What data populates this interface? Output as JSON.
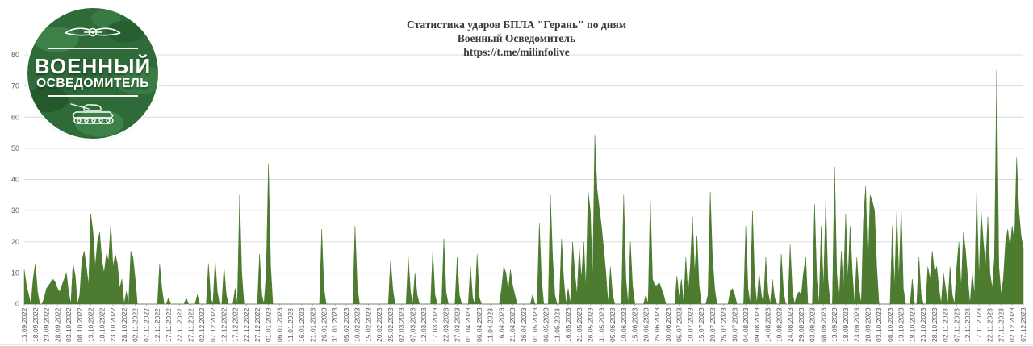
{
  "logo": {
    "top_text": "ВОЕННЫЙ",
    "bottom_text": "ОСВЕДОМИТЕЛЬ"
  },
  "chart_data": {
    "type": "area",
    "title": "Статистика ударов БПЛА \"Герань\" по дням",
    "subtitle": "Военный Осведомитель",
    "url_line": "https://t.me/milinfolive",
    "xlabel": "",
    "ylabel": "",
    "ylim": [
      0,
      80
    ],
    "yticks": [
      0,
      10,
      20,
      30,
      40,
      50,
      60,
      70,
      80
    ],
    "grid": "horizontal",
    "legend": "none",
    "start_date": "13.09.2022",
    "end_date": "07.12.2023",
    "x_tick_interval_days": 5,
    "x_tick_labels": [
      "13.09.2022",
      "18.09.2022",
      "23.09.2022",
      "28.09.2022",
      "03.10.2022",
      "08.10.2022",
      "13.10.2022",
      "18.10.2022",
      "23.10.2022",
      "28.10.2022",
      "02.11.2022",
      "07.11.2022",
      "12.11.2022",
      "17.11.2022",
      "22.11.2022",
      "27.11.2022",
      "02.12.2022",
      "07.12.2022",
      "12.12.2022",
      "17.12.2022",
      "22.12.2022",
      "27.12.2022",
      "01.01.2023",
      "06.01.2023",
      "11.01.2023",
      "16.01.2023",
      "21.01.2023",
      "26.01.2023",
      "31.01.2023",
      "05.02.2023",
      "10.02.2023",
      "15.02.2023",
      "20.02.2023",
      "25.02.2023",
      "02.03.2023",
      "07.03.2023",
      "12.03.2023",
      "17.03.2023",
      "22.03.2023",
      "27.03.2023",
      "01.04.2023",
      "06.04.2023",
      "11.04.2023",
      "16.04.2023",
      "21.04.2023",
      "26.04.2023",
      "01.05.2023",
      "06.05.2023",
      "11.05.2023",
      "16.05.2023",
      "21.05.2023",
      "26.05.2023",
      "31.05.2023",
      "05.06.2023",
      "10.06.2023",
      "15.06.2023",
      "20.06.2023",
      "25.06.2023",
      "30.06.2023",
      "05.07.2023",
      "10.07.2023",
      "15.07.2023",
      "20.07.2023",
      "25.07.2023",
      "30.07.2023",
      "04.08.2023",
      "09.08.2023",
      "14.08.2023",
      "19.08.2023",
      "24.08.2023",
      "29.08.2023",
      "03.09.2023",
      "08.09.2023",
      "13.09.2023",
      "18.09.2023",
      "23.09.2023",
      "28.09.2023",
      "03.10.2023",
      "08.10.2023",
      "13.10.2023",
      "18.10.2023",
      "23.10.2023",
      "28.10.2023",
      "02.11.2023",
      "07.11.2023",
      "12.11.2023",
      "17.11.2023",
      "22.11.2023",
      "27.11.2023",
      "02.12.2023",
      "07.12.2023"
    ],
    "values_unit": "strikes per day (daily values starting 13.09.2022)",
    "values": [
      11,
      6,
      3,
      0,
      8,
      13,
      4,
      0,
      0,
      2,
      5,
      6,
      7,
      8,
      7,
      5,
      4,
      6,
      8,
      10,
      4,
      0,
      13,
      9,
      0,
      3,
      14,
      17,
      12,
      6,
      29,
      23,
      12,
      20,
      23,
      14,
      10,
      16,
      14,
      26,
      12,
      16,
      13,
      5,
      8,
      0,
      4,
      0,
      17,
      15,
      8,
      0,
      0,
      0,
      0,
      0,
      0,
      0,
      0,
      0,
      0,
      13,
      5,
      0,
      0,
      2,
      0,
      0,
      0,
      0,
      0,
      0,
      0,
      2,
      0,
      0,
      0,
      0,
      3,
      0,
      0,
      0,
      0,
      13,
      2,
      0,
      14,
      4,
      0,
      0,
      12,
      3,
      0,
      0,
      0,
      5,
      0,
      35,
      10,
      0,
      0,
      0,
      0,
      0,
      0,
      0,
      16,
      3,
      0,
      10,
      45,
      12,
      0,
      0,
      0,
      0,
      0,
      0,
      0,
      0,
      0,
      0,
      0,
      0,
      0,
      0,
      0,
      0,
      0,
      0,
      0,
      0,
      0,
      0,
      24,
      5,
      0,
      0,
      0,
      0,
      0,
      0,
      0,
      0,
      0,
      0,
      0,
      0,
      0,
      25,
      6,
      0,
      0,
      0,
      0,
      0,
      0,
      0,
      0,
      0,
      0,
      0,
      0,
      0,
      0,
      14,
      5,
      0,
      0,
      0,
      0,
      0,
      0,
      15,
      4,
      0,
      10,
      3,
      0,
      0,
      0,
      0,
      0,
      0,
      17,
      3,
      0,
      0,
      0,
      21,
      4,
      0,
      0,
      0,
      0,
      15,
      3,
      0,
      0,
      0,
      0,
      12,
      2,
      0,
      16,
      2,
      0,
      0,
      0,
      0,
      0,
      0,
      0,
      0,
      0,
      5,
      12,
      10,
      4,
      11,
      6,
      3,
      0,
      0,
      0,
      0,
      0,
      0,
      0,
      3,
      0,
      0,
      26,
      8,
      0,
      0,
      0,
      35,
      15,
      3,
      0,
      0,
      21,
      8,
      0,
      5,
      0,
      20,
      10,
      3,
      18,
      8,
      20,
      5,
      36,
      30,
      8,
      54,
      37,
      31,
      25,
      18,
      10,
      0,
      12,
      3,
      0,
      0,
      0,
      0,
      35,
      8,
      0,
      20,
      6,
      0,
      0,
      0,
      0,
      0,
      3,
      0,
      34,
      8,
      6,
      6,
      7,
      5,
      3,
      0,
      0,
      0,
      0,
      0,
      9,
      2,
      8,
      0,
      15,
      3,
      12,
      28,
      10,
      22,
      6,
      0,
      0,
      0,
      3,
      36,
      15,
      5,
      0,
      0,
      0,
      0,
      0,
      0,
      4,
      5,
      3,
      0,
      0,
      0,
      0,
      25,
      5,
      0,
      30,
      8,
      0,
      10,
      3,
      0,
      15,
      4,
      0,
      8,
      2,
      0,
      0,
      16,
      4,
      0,
      0,
      19,
      4,
      0,
      3,
      4,
      3,
      10,
      15,
      0,
      0,
      0,
      32,
      8,
      0,
      25,
      5,
      33,
      8,
      0,
      0,
      44,
      10,
      0,
      17,
      5,
      29,
      8,
      25,
      10,
      0,
      15,
      5,
      0,
      27,
      38,
      10,
      35,
      33,
      30,
      12,
      0,
      0,
      0,
      0,
      0,
      0,
      25,
      5,
      30,
      8,
      31,
      5,
      0,
      0,
      0,
      8,
      0,
      0,
      15,
      3,
      0,
      0,
      12,
      8,
      17,
      10,
      12,
      5,
      0,
      10,
      5,
      0,
      12,
      3,
      0,
      12,
      20,
      5,
      23,
      17,
      8,
      0,
      10,
      3,
      36,
      8,
      30,
      20,
      12,
      28,
      10,
      5,
      15,
      75,
      12,
      3,
      8,
      20,
      24,
      18,
      25,
      20,
      47,
      30,
      22,
      18
    ],
    "colors": {
      "area_fill": "#4d7c31",
      "gridline": "#dcdcdc",
      "axis_line": "#c9c9c9",
      "tick_mark": "#bfbfbf",
      "axis_text": "#595959",
      "title_text": "#3a3a3a",
      "logo_green": "#2e6b38"
    }
  }
}
